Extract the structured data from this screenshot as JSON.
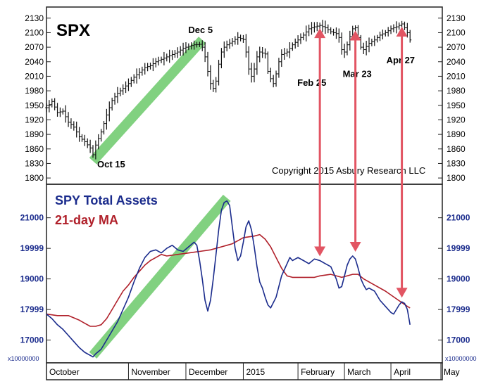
{
  "chart_data": [
    {
      "type": "ohlc",
      "title": "SPX",
      "copyright": "Copyright 2015 Asbury Research LLC",
      "ylim": [
        1790,
        2150
      ],
      "ticks": [
        "1800",
        "1830",
        "1860",
        "1890",
        "1920",
        "1950",
        "1980",
        "2010",
        "2040",
        "2070",
        "2100",
        "2130"
      ],
      "price_path": [
        [
          0,
          1945
        ],
        [
          2,
          1958
        ],
        [
          4,
          1935
        ],
        [
          6,
          1938
        ],
        [
          8,
          1915
        ],
        [
          10,
          1905
        ],
        [
          12,
          1885
        ],
        [
          14,
          1875
        ],
        [
          16,
          1862
        ],
        [
          17,
          1848
        ],
        [
          18,
          1868
        ],
        [
          20,
          1895
        ],
        [
          22,
          1930
        ],
        [
          24,
          1960
        ],
        [
          26,
          1975
        ],
        [
          28,
          1985
        ],
        [
          30,
          1995
        ],
        [
          32,
          2008
        ],
        [
          34,
          2018
        ],
        [
          36,
          2028
        ],
        [
          38,
          2032
        ],
        [
          40,
          2040
        ],
        [
          42,
          2045
        ],
        [
          44,
          2050
        ],
        [
          46,
          2055
        ],
        [
          48,
          2060
        ],
        [
          50,
          2068
        ],
        [
          52,
          2072
        ],
        [
          54,
          2075
        ],
        [
          56,
          2076
        ],
        [
          57,
          2070
        ],
        [
          58,
          2050
        ],
        [
          59,
          2020
        ],
        [
          60,
          1995
        ],
        [
          61,
          1985
        ],
        [
          62,
          2000
        ],
        [
          63,
          2035
        ],
        [
          64,
          2060
        ],
        [
          65,
          2070
        ],
        [
          66,
          2075
        ],
        [
          68,
          2082
        ],
        [
          70,
          2090
        ],
        [
          72,
          2086
        ],
        [
          73,
          2060
        ],
        [
          74,
          2025
        ],
        [
          75,
          2010
        ],
        [
          76,
          2025
        ],
        [
          77,
          2050
        ],
        [
          78,
          2060
        ],
        [
          80,
          2056
        ],
        [
          81,
          2020
        ],
        [
          82,
          2005
        ],
        [
          83,
          1995
        ],
        [
          84,
          2015
        ],
        [
          85,
          2040
        ],
        [
          86,
          2055
        ],
        [
          88,
          2060
        ],
        [
          90,
          2075
        ],
        [
          92,
          2085
        ],
        [
          94,
          2095
        ],
        [
          96,
          2108
        ],
        [
          98,
          2112
        ],
        [
          100,
          2115
        ],
        [
          102,
          2110
        ],
        [
          104,
          2102
        ],
        [
          106,
          2098
        ],
        [
          107,
          2090
        ],
        [
          108,
          2065
        ],
        [
          109,
          2060
        ],
        [
          110,
          2075
        ],
        [
          111,
          2092
        ],
        [
          112,
          2108
        ],
        [
          113,
          2110
        ],
        [
          114,
          2090
        ],
        [
          115,
          2070
        ],
        [
          116,
          2065
        ],
        [
          118,
          2078
        ],
        [
          120,
          2085
        ],
        [
          122,
          2095
        ],
        [
          124,
          2100
        ],
        [
          126,
          2108
        ],
        [
          128,
          2112
        ],
        [
          130,
          2118
        ],
        [
          131,
          2110
        ],
        [
          132,
          2100
        ],
        [
          133,
          2085
        ]
      ],
      "annotations": [
        {
          "label": "Oct 15",
          "x": 17,
          "y": 1848
        },
        {
          "label": "Dec 5",
          "x": 56,
          "y": 2076
        },
        {
          "label": "Feb 25",
          "x": 100,
          "y": 2115
        },
        {
          "label": "Mar 23",
          "x": 113,
          "y": 2110
        },
        {
          "label": "Apr 27",
          "x": 130,
          "y": 2118
        }
      ],
      "trend_band": {
        "from": [
          17,
          1835
        ],
        "to": [
          57,
          2085
        ]
      }
    },
    {
      "type": "line",
      "series": [
        {
          "name": "SPY Total Assets",
          "color": "#1a2b8c",
          "values": [
            [
              0,
              17850
            ],
            [
              2,
              17700
            ],
            [
              4,
              17500
            ],
            [
              6,
              17350
            ],
            [
              8,
              17150
            ],
            [
              10,
              16950
            ],
            [
              12,
              16750
            ],
            [
              14,
              16600
            ],
            [
              16,
              16500
            ],
            [
              17,
              16450
            ],
            [
              18,
              16550
            ],
            [
              20,
              16700
            ],
            [
              22,
              17000
            ],
            [
              24,
              17300
            ],
            [
              26,
              17600
            ],
            [
              28,
              18000
            ],
            [
              30,
              18400
            ],
            [
              32,
              18900
            ],
            [
              34,
              19350
            ],
            [
              36,
              19700
            ],
            [
              38,
              19900
            ],
            [
              40,
              19950
            ],
            [
              42,
              19850
            ],
            [
              44,
              20000
            ],
            [
              46,
              20100
            ],
            [
              48,
              19950
            ],
            [
              50,
              19900
            ],
            [
              52,
              20050
            ],
            [
              54,
              20200
            ],
            [
              55,
              20100
            ],
            [
              56,
              19600
            ],
            [
              57,
              19000
            ],
            [
              58,
              18300
            ],
            [
              59,
              17950
            ],
            [
              60,
              18300
            ],
            [
              61,
              19000
            ],
            [
              62,
              19800
            ],
            [
              63,
              20600
            ],
            [
              64,
              21250
            ],
            [
              65,
              21500
            ],
            [
              66,
              21550
            ],
            [
              67,
              21400
            ],
            [
              68,
              20700
            ],
            [
              69,
              20000
            ],
            [
              70,
              19600
            ],
            [
              71,
              19750
            ],
            [
              72,
              20200
            ],
            [
              73,
              20700
            ],
            [
              74,
              20900
            ],
            [
              75,
              20600
            ],
            [
              76,
              20050
            ],
            [
              77,
              19400
            ],
            [
              78,
              18900
            ],
            [
              79,
              18700
            ],
            [
              80,
              18400
            ],
            [
              81,
              18150
            ],
            [
              82,
              18050
            ],
            [
              84,
              18400
            ],
            [
              86,
              19100
            ],
            [
              88,
              19500
            ],
            [
              89,
              19700
            ],
            [
              90,
              19600
            ],
            [
              92,
              19700
            ],
            [
              94,
              19600
            ],
            [
              96,
              19500
            ],
            [
              98,
              19650
            ],
            [
              100,
              19600
            ],
            [
              102,
              19500
            ],
            [
              104,
              19400
            ],
            [
              106,
              19000
            ],
            [
              107,
              18700
            ],
            [
              108,
              18750
            ],
            [
              109,
              19100
            ],
            [
              110,
              19450
            ],
            [
              111,
              19650
            ],
            [
              112,
              19750
            ],
            [
              113,
              19650
            ],
            [
              114,
              19350
            ],
            [
              115,
              19000
            ],
            [
              116,
              18800
            ],
            [
              117,
              18650
            ],
            [
              118,
              18700
            ],
            [
              120,
              18600
            ],
            [
              122,
              18300
            ],
            [
              124,
              18100
            ],
            [
              126,
              17900
            ],
            [
              127,
              17850
            ],
            [
              128,
              18000
            ],
            [
              129,
              18150
            ],
            [
              130,
              18250
            ],
            [
              131,
              18200
            ],
            [
              132,
              18000
            ],
            [
              133,
              17500
            ]
          ]
        },
        {
          "name": "21-day MA",
          "color": "#b0202a",
          "values": [
            [
              0,
              17850
            ],
            [
              4,
              17800
            ],
            [
              8,
              17800
            ],
            [
              12,
              17650
            ],
            [
              14,
              17550
            ],
            [
              16,
              17450
            ],
            [
              18,
              17450
            ],
            [
              20,
              17500
            ],
            [
              22,
              17700
            ],
            [
              24,
              18000
            ],
            [
              26,
              18300
            ],
            [
              28,
              18600
            ],
            [
              30,
              18800
            ],
            [
              32,
              19050
            ],
            [
              34,
              19250
            ],
            [
              36,
              19450
            ],
            [
              38,
              19600
            ],
            [
              40,
              19700
            ],
            [
              42,
              19800
            ],
            [
              44,
              19750
            ],
            [
              48,
              19800
            ],
            [
              52,
              19850
            ],
            [
              56,
              19900
            ],
            [
              60,
              19950
            ],
            [
              64,
              20050
            ],
            [
              66,
              20100
            ],
            [
              68,
              20150
            ],
            [
              70,
              20250
            ],
            [
              72,
              20350
            ],
            [
              76,
              20400
            ],
            [
              78,
              20450
            ],
            [
              80,
              20300
            ],
            [
              82,
              20050
            ],
            [
              84,
              19700
            ],
            [
              86,
              19350
            ],
            [
              88,
              19100
            ],
            [
              90,
              19050
            ],
            [
              94,
              19050
            ],
            [
              98,
              19050
            ],
            [
              100,
              19100
            ],
            [
              104,
              19150
            ],
            [
              108,
              19050
            ],
            [
              112,
              19150
            ],
            [
              114,
              19150
            ],
            [
              116,
              19000
            ],
            [
              120,
              18800
            ],
            [
              124,
              18600
            ],
            [
              128,
              18350
            ],
            [
              132,
              18100
            ],
            [
              133,
              18050
            ]
          ]
        }
      ],
      "ylim": [
        16300,
        22050
      ],
      "ticks": [
        "17000",
        "17999",
        "19000",
        "19999",
        "21000"
      ],
      "multiplier_label": "x10000000",
      "trend_band": {
        "from": [
          17,
          16500
        ],
        "to": [
          66,
          21650
        ]
      }
    }
  ],
  "x_axis": {
    "range": [
      0,
      135
    ],
    "months": [
      {
        "label": "October",
        "x": 0
      },
      {
        "label": "November",
        "x": 30
      },
      {
        "label": "December",
        "x": 51
      },
      {
        "label": "2015",
        "x": 72
      },
      {
        "label": "February",
        "x": 92
      },
      {
        "label": "March",
        "x": 109
      },
      {
        "label": "April",
        "x": 126
      },
      {
        "label": "May",
        "x": 147
      }
    ]
  },
  "arrows": [
    {
      "x": 100,
      "top_y": 2115,
      "bottom_y": 19600
    },
    {
      "x": 113,
      "top_y": 2110,
      "bottom_y": 19750
    },
    {
      "x": 130,
      "top_y": 2118,
      "bottom_y": 18250
    }
  ],
  "colors": {
    "accent": "#e25563",
    "band": "#6cc96a",
    "asset_line": "#1a2b8c",
    "ma_line": "#b0202a"
  }
}
